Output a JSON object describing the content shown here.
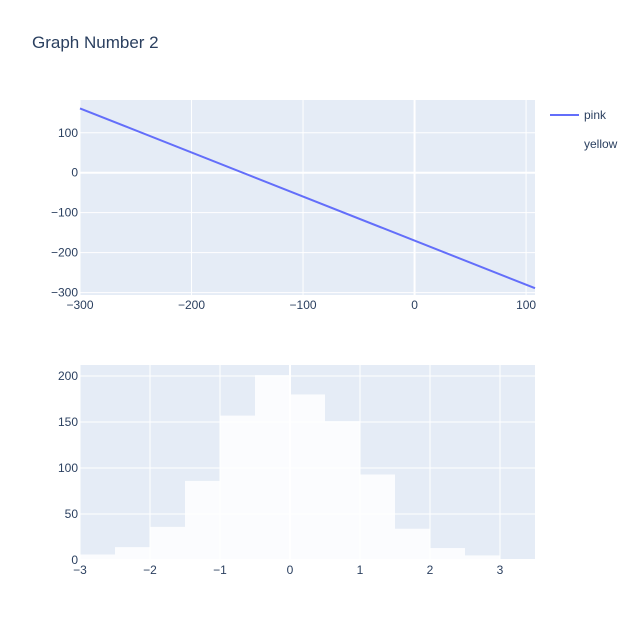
{
  "title": "Graph Number 2",
  "legend": [
    {
      "name": "pink",
      "color": "#636efa",
      "symbol": "line"
    },
    {
      "name": "yellow",
      "color": "#ffffff",
      "symbol": "bar"
    }
  ],
  "chart_data": [
    {
      "type": "line",
      "series": [
        {
          "name": "pink",
          "color": "#636efa",
          "x": [
            -300,
            108
          ],
          "y": [
            161,
            -289
          ]
        }
      ],
      "xlim": [
        -300,
        108
      ],
      "ylim": [
        -306,
        182
      ],
      "xticks": [
        -300,
        -200,
        -100,
        0,
        100
      ],
      "yticks": [
        -300,
        -200,
        -100,
        0,
        100
      ],
      "xtick_labels": [
        "−300",
        "−200",
        "−100",
        "0",
        "100"
      ],
      "ytick_labels": [
        "−300",
        "−200",
        "−100",
        "0",
        "100"
      ],
      "grid": true,
      "legend_position": "top-right"
    },
    {
      "type": "bar",
      "series": [
        {
          "name": "yellow",
          "color": "#ffffff",
          "bin_edges": [
            -3,
            -2.5,
            -2,
            -1.5,
            -1,
            -0.5,
            0,
            0.5,
            1,
            1.5,
            2,
            2.5,
            3,
            3.5
          ],
          "values": [
            6,
            14,
            36,
            86,
            157,
            201,
            180,
            151,
            93,
            34,
            13,
            5,
            1
          ]
        }
      ],
      "xlim": [
        -3,
        3.5
      ],
      "ylim": [
        0,
        212
      ],
      "xticks": [
        -3,
        -2,
        -1,
        0,
        1,
        2,
        3
      ],
      "yticks": [
        0,
        50,
        100,
        150,
        200
      ],
      "xtick_labels": [
        "−3",
        "−2",
        "−1",
        "0",
        "1",
        "2",
        "3"
      ],
      "ytick_labels": [
        "0",
        "50",
        "100",
        "150",
        "200"
      ],
      "grid": true
    }
  ]
}
